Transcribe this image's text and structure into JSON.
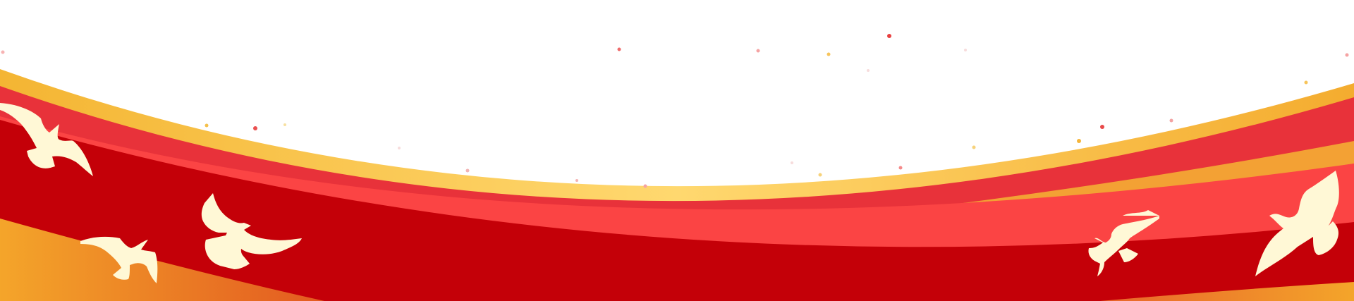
{
  "decoration": {
    "type": "festive-ribbon-banner",
    "colors": {
      "background": "#ffffff",
      "red_deep": "#c40008",
      "red_mid": "#e8323a",
      "red_light": "#fb4444",
      "gold": "#f5b43a",
      "gold_light": "#ffd66e",
      "orange": "#ef6a2a",
      "dove": "#fff8d6"
    },
    "icons": [
      "dove-icon"
    ],
    "dove_count": 6,
    "sparkle_count": 22
  }
}
